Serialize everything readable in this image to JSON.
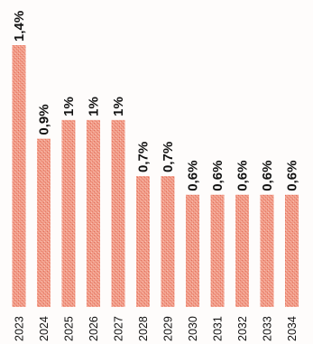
{
  "chart_data": {
    "type": "bar",
    "orientation": "vertical",
    "categories": [
      "2023",
      "2024",
      "2025",
      "2026",
      "2027",
      "2028",
      "2029",
      "2030",
      "2031",
      "2032",
      "2033",
      "2034"
    ],
    "values": [
      1.4,
      0.9,
      1.0,
      1.0,
      1.0,
      0.7,
      0.7,
      0.6,
      0.6,
      0.6,
      0.6,
      0.6
    ],
    "value_labels": [
      "1,4%",
      "0,9%",
      "1%",
      "1%",
      "1%",
      "0,7%",
      "0,7%",
      "0,6%",
      "0,6%",
      "0,6%",
      "0,6%",
      "0,6%"
    ],
    "title": "",
    "xlabel": "",
    "ylabel": "",
    "ylim": [
      0,
      1.4
    ],
    "grid": false,
    "legend": "none",
    "bar_color": "#ec8f7c",
    "label_orientation": "rotated-vertical"
  }
}
